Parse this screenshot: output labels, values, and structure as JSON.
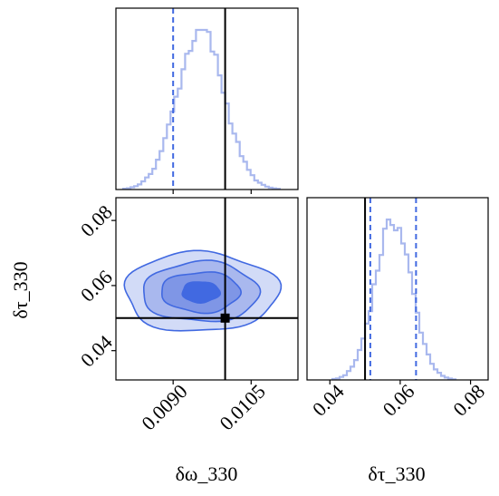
{
  "chart_data": {
    "type": "corner",
    "parameters": [
      "δω_330",
      "δτ_330"
    ],
    "colors": {
      "posterior": "#4169e1",
      "posterior_light": "#a9b8ee",
      "truth": "#000000",
      "quantile": "#4169e1"
    },
    "grid": false,
    "legend": "none",
    "panels": [
      {
        "type": "histogram",
        "parameter": "δω_330",
        "xlim": [
          0.0079,
          0.0114
        ],
        "x_ticks": [],
        "y_ticks": [],
        "truth": 0.01,
        "quantiles": [
          0.009
        ],
        "hist_shape": {
          "center": 0.00953,
          "sd": 0.00045,
          "peak": 0.0095
        }
      },
      {
        "type": "contour-2d",
        "x_parameter": "δω_330",
        "y_parameter": "δτ_330",
        "xlim": [
          0.0079,
          0.0114
        ],
        "ylim": [
          0.031,
          0.087
        ],
        "x_ticks": [
          "0.0090",
          "0.0105"
        ],
        "x_tick_values": [
          0.009,
          0.0105
        ],
        "y_ticks": [
          "0.04",
          "0.06",
          "0.08"
        ],
        "y_tick_values": [
          0.04,
          0.06,
          0.08
        ],
        "xlabel": "δω_330",
        "ylabel": "δτ_330",
        "truth": {
          "x": 0.01,
          "y": 0.05
        },
        "contour_center": {
          "x": 0.00953,
          "y": 0.058
        },
        "contour_levels": [
          {
            "x_half_width": 0.00148,
            "y_half_width": 0.0122
          },
          {
            "x_half_width": 0.00112,
            "y_half_width": 0.0092
          },
          {
            "x_half_width": 0.00076,
            "y_half_width": 0.0062
          },
          {
            "x_half_width": 0.00036,
            "y_half_width": 0.0032
          }
        ]
      },
      {
        "type": "histogram",
        "parameter": "δτ_330",
        "xlim": [
          0.0335,
          0.085
        ],
        "x_ticks": [
          "0.04",
          "0.06",
          "0.08"
        ],
        "x_tick_values": [
          0.04,
          0.06,
          0.08
        ],
        "xlabel": "δτ_330",
        "truth": 0.05,
        "quantiles": [
          0.0515,
          0.0645
        ],
        "hist_shape": {
          "center": 0.058,
          "sd": 0.0052,
          "peak": 0.058
        }
      }
    ]
  }
}
